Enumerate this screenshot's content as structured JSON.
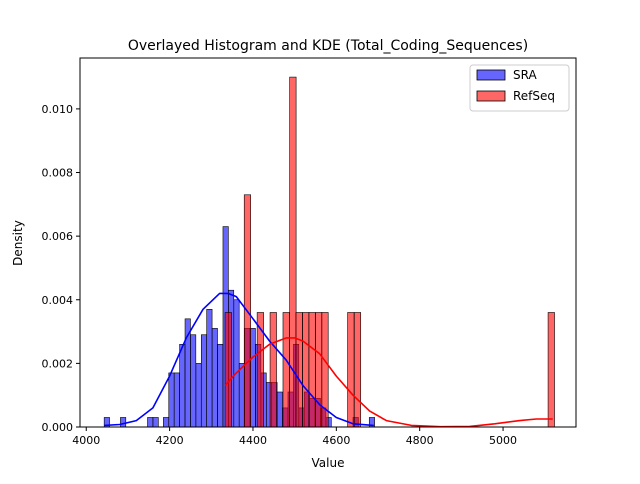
{
  "chart_data": {
    "type": "histogram",
    "title": "Overlayed Histogram and KDE (Total_Coding_Sequences)",
    "xlabel": "Value",
    "ylabel": "Density",
    "xlim": [
      3985,
      5175
    ],
    "ylim": [
      0,
      0.0116
    ],
    "x_ticks": [
      4000,
      4200,
      4400,
      4600,
      4800,
      5000
    ],
    "y_ticks": [
      0.0,
      0.002,
      0.004,
      0.006,
      0.008,
      0.01
    ],
    "x_tick_labels": [
      "4000",
      "4200",
      "4400",
      "4600",
      "4800",
      "5000"
    ],
    "y_tick_labels": [
      "0.000",
      "0.002",
      "0.004",
      "0.006",
      "0.008",
      "0.010"
    ],
    "grid": false,
    "legend_placement": "top-right",
    "series": [
      {
        "name": "SRA",
        "color": "#0000ff",
        "bin_width": 12.9,
        "bins": [
          [
            4043,
            0.0003
          ],
          [
            4082,
            0.0003
          ],
          [
            4147,
            0.0003
          ],
          [
            4160,
            0.0003
          ],
          [
            4185,
            0.0003
          ],
          [
            4198,
            0.0017
          ],
          [
            4211,
            0.0017
          ],
          [
            4224,
            0.0026
          ],
          [
            4237,
            0.0034
          ],
          [
            4250,
            0.0029
          ],
          [
            4263,
            0.002
          ],
          [
            4276,
            0.0029
          ],
          [
            4289,
            0.0037
          ],
          [
            4302,
            0.0031
          ],
          [
            4315,
            0.0026
          ],
          [
            4328,
            0.0063
          ],
          [
            4341,
            0.0043
          ],
          [
            4354,
            0.004
          ],
          [
            4367,
            0.002
          ],
          [
            4380,
            0.0031
          ],
          [
            4393,
            0.0031
          ],
          [
            4406,
            0.0026
          ],
          [
            4419,
            0.0017
          ],
          [
            4432,
            0.0014
          ],
          [
            4445,
            0.0014
          ],
          [
            4458,
            0.0011
          ],
          [
            4471,
            0.0006
          ],
          [
            4484,
            0.0011
          ],
          [
            4497,
            0.0026
          ],
          [
            4510,
            0.0006
          ],
          [
            4523,
            0.0011
          ],
          [
            4536,
            0.0009
          ],
          [
            4549,
            0.0009
          ],
          [
            4562,
            0.0006
          ],
          [
            4575,
            0.0003
          ],
          [
            4640,
            0.0003
          ],
          [
            4679,
            0.0003
          ]
        ],
        "kde": {
          "x": [
            4043,
            4080,
            4120,
            4160,
            4200,
            4240,
            4280,
            4320,
            4340,
            4360,
            4400,
            4440,
            4480,
            4520,
            4560,
            4600,
            4640,
            4690
          ],
          "y": [
            5e-05,
            8e-05,
            0.0002,
            0.0006,
            0.0016,
            0.0028,
            0.0037,
            0.0042,
            0.0042,
            0.0041,
            0.0034,
            0.0027,
            0.0021,
            0.0013,
            0.0007,
            0.0003,
            0.0001,
            5e-05
          ]
        }
      },
      {
        "name": "RefSeq",
        "color": "#ff0000",
        "bin_width": 15.5,
        "bins": [
          [
            4333,
            0.0036
          ],
          [
            4379,
            0.0073
          ],
          [
            4410,
            0.0036
          ],
          [
            4441,
            0.0036
          ],
          [
            4472,
            0.0036
          ],
          [
            4488,
            0.011
          ],
          [
            4503,
            0.0036
          ],
          [
            4519,
            0.0036
          ],
          [
            4534,
            0.0036
          ],
          [
            4550,
            0.0036
          ],
          [
            4565,
            0.0036
          ],
          [
            4627,
            0.0036
          ],
          [
            4643,
            0.0036
          ],
          [
            5108,
            0.0036
          ]
        ],
        "kde": {
          "x": [
            4333,
            4360,
            4400,
            4440,
            4480,
            4500,
            4520,
            4560,
            4600,
            4640,
            4680,
            4720,
            4780,
            4850,
            4920,
            4980,
            5040,
            5080,
            5119
          ],
          "y": [
            0.0013,
            0.0017,
            0.0022,
            0.0026,
            0.0028,
            0.0028,
            0.0027,
            0.0023,
            0.0016,
            0.001,
            0.0005,
            0.0002,
            5e-05,
            1e-05,
            2e-05,
            0.0001,
            0.0002,
            0.00025,
            0.00025
          ]
        }
      }
    ]
  }
}
